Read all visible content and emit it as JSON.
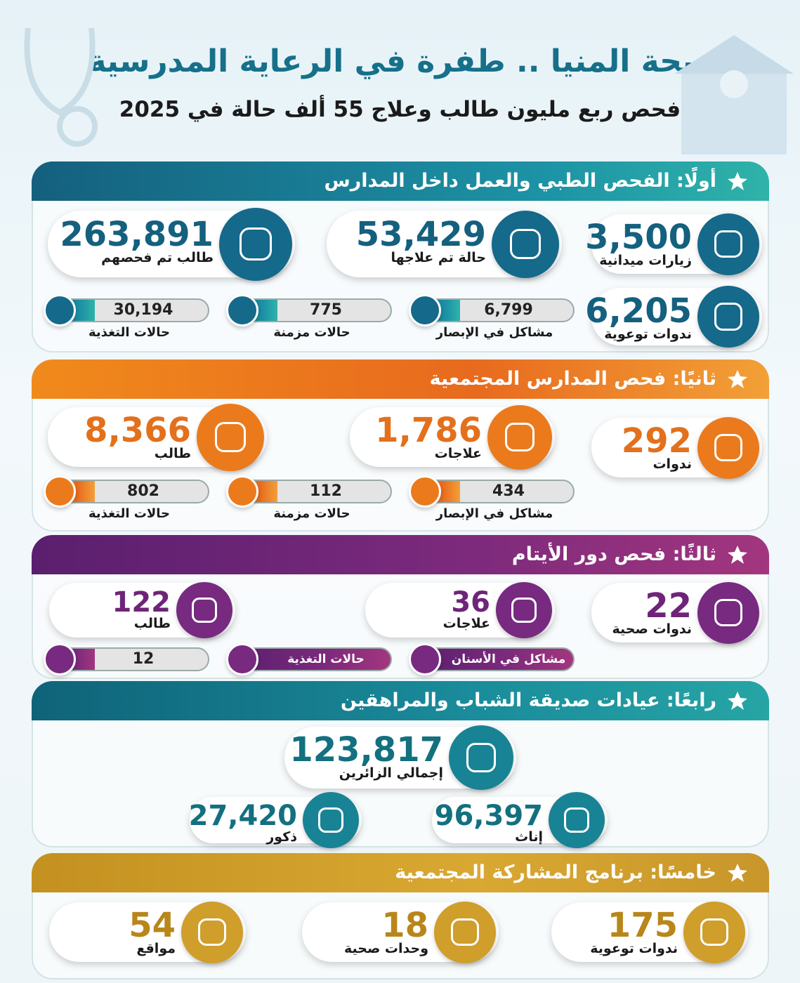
{
  "title": "صحة المنيا .. طفرة في الرعاية المدرسية",
  "subtitle": "فحص ربع مليون طالب وعلاج 55 ألف حالة في 2025",
  "sections": [
    {
      "heading": "أولًا: الفحص الطبي والعمل داخل المدارس",
      "stats": [
        {
          "value": "263,891",
          "label": "طالب تم فحصهم"
        },
        {
          "value": "53,429",
          "label": "حالة تم علاجها"
        },
        {
          "value": "3,500",
          "label": "زيارات ميدانية"
        },
        {
          "value": "6,205",
          "label": "ندوات توعوية"
        }
      ],
      "small": [
        {
          "value": "30,194",
          "label": "حالات التغذية"
        },
        {
          "value": "775",
          "label": "حالات مزمنة"
        },
        {
          "value": "6,799",
          "label": "مشاكل في الإبصار"
        }
      ]
    },
    {
      "heading": "ثانيًا: فحص المدارس المجتمعية",
      "stats": [
        {
          "value": "8,366",
          "label": "طالب"
        },
        {
          "value": "1,786",
          "label": "علاجات"
        },
        {
          "value": "292",
          "label": "ندوات"
        }
      ],
      "small": [
        {
          "value": "802",
          "label": "حالات التغذية"
        },
        {
          "value": "112",
          "label": "حالات مزمنة"
        },
        {
          "value": "434",
          "label": "مشاكل في الإبصار"
        }
      ]
    },
    {
      "heading": "ثالثًا: فحص دور الأيتام",
      "stats": [
        {
          "value": "122",
          "label": "طالب"
        },
        {
          "value": "36",
          "label": "علاجات"
        },
        {
          "value": "22",
          "label": "ندوات صحية"
        }
      ],
      "small": [
        {
          "value": "12"
        },
        {
          "text": "حالات التغذية"
        },
        {
          "text": "مشاكل في الأسنان"
        }
      ]
    },
    {
      "heading": "رابعًا: عيادات صديقة الشباب والمراهقين",
      "stats": [
        {
          "value": "123,817",
          "label": "إجمالي الزائرين"
        },
        {
          "value": "27,420",
          "label": "ذكور"
        },
        {
          "value": "96,397",
          "label": "إناث"
        }
      ]
    },
    {
      "heading": "خامسًا: برنامج المشاركة المجتمعية",
      "stats": [
        {
          "value": "54",
          "label": "مواقع"
        },
        {
          "value": "18",
          "label": "وحدات صحية"
        },
        {
          "value": "175",
          "label": "ندوات توعوية"
        }
      ]
    }
  ]
}
